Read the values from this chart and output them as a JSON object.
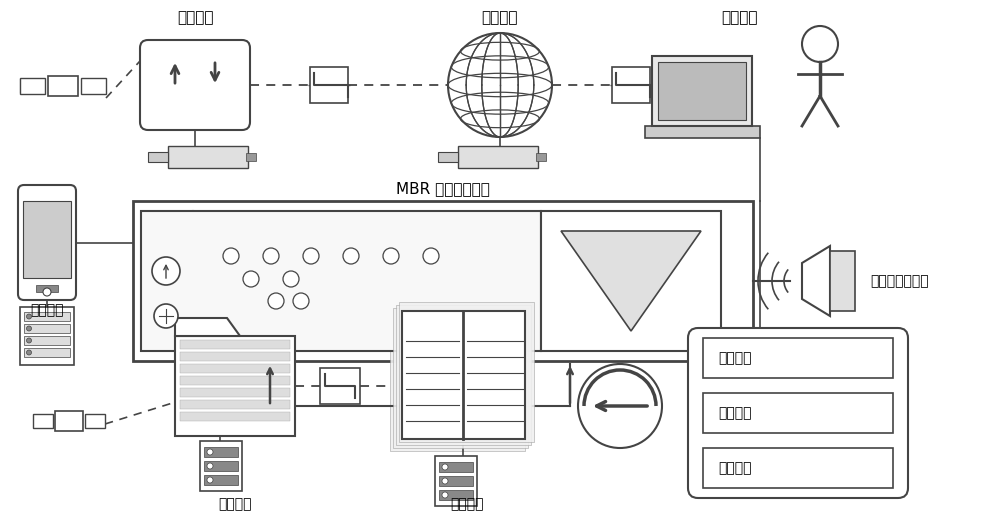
{
  "bg_color": "#ffffff",
  "line_color": "#444444",
  "text_color": "#000000",
  "labels": {
    "interface": "接口协议",
    "network": "网络传输",
    "human": "人机交互",
    "mbr_process": "MBR 处理污水过程",
    "instrument": "仪表显示",
    "output_prediction": "出水透水率预测",
    "data_storage": "数据存储",
    "process_measurement": "过程测量",
    "device_install": "设备安装",
    "device_debug": "设备调试",
    "device_maintain": "设备维护"
  },
  "figsize": [
    10.0,
    5.26
  ],
  "dpi": 100
}
